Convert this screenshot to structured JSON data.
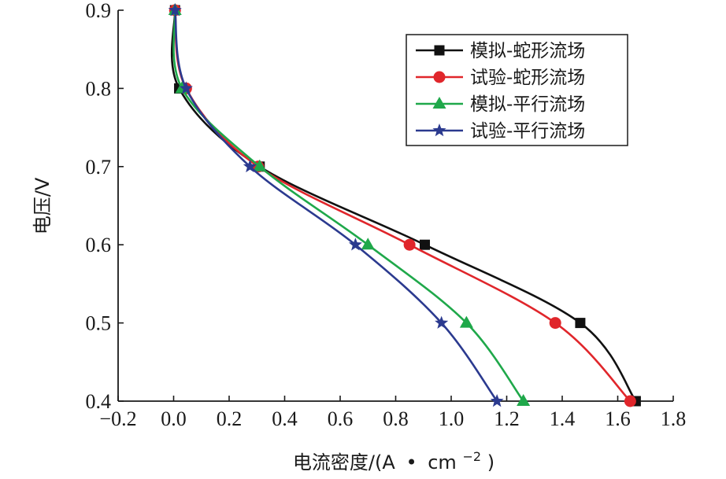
{
  "chart_data": {
    "type": "line",
    "title": "",
    "xlabel_main": "电流密度/(A",
    "xlabel_dot": "•",
    "xlabel_unit": "cm",
    "xlabel_sup": "−2",
    "xlabel_close": ")",
    "ylabel": "电压/V",
    "xlim": [
      -0.2,
      1.8
    ],
    "ylim": [
      0.4,
      0.9
    ],
    "x_ticks": [
      -0.2,
      0.0,
      0.2,
      0.4,
      0.6,
      0.8,
      1.0,
      1.2,
      1.4,
      1.6,
      1.8
    ],
    "x_tick_labels": [
      "−0.2",
      "0.0",
      "0.2",
      "0.4",
      "0.6",
      "0.8",
      "1.0",
      "1.2",
      "1.4",
      "1.6",
      "1.8"
    ],
    "y_ticks": [
      0.4,
      0.5,
      0.6,
      0.7,
      0.8,
      0.9
    ],
    "y_tick_labels": [
      "0.4",
      "0.5",
      "0.6",
      "0.7",
      "0.8",
      "0.9"
    ],
    "grid": false,
    "legend_position": "top-right",
    "series": [
      {
        "name": "模拟-蛇形流场",
        "color": "#111111",
        "marker": "square",
        "points": [
          [
            0.005,
            0.9
          ],
          [
            0.02,
            0.8
          ],
          [
            0.31,
            0.7
          ],
          [
            0.905,
            0.6
          ],
          [
            1.465,
            0.5
          ],
          [
            1.665,
            0.4
          ]
        ]
      },
      {
        "name": "试验-蛇形流场",
        "color": "#e0262b",
        "marker": "circle",
        "points": [
          [
            0.005,
            0.9
          ],
          [
            0.045,
            0.8
          ],
          [
            0.305,
            0.7
          ],
          [
            0.85,
            0.6
          ],
          [
            1.375,
            0.5
          ],
          [
            1.645,
            0.4
          ]
        ]
      },
      {
        "name": "模拟-平行流场",
        "color": "#1fa84a",
        "marker": "triangle",
        "points": [
          [
            0.005,
            0.9
          ],
          [
            0.03,
            0.8
          ],
          [
            0.31,
            0.7
          ],
          [
            0.7,
            0.6
          ],
          [
            1.055,
            0.5
          ],
          [
            1.26,
            0.4
          ]
        ]
      },
      {
        "name": "试验-平行流场",
        "color": "#2b3a8f",
        "marker": "star",
        "points": [
          [
            0.005,
            0.9
          ],
          [
            0.045,
            0.8
          ],
          [
            0.275,
            0.7
          ],
          [
            0.655,
            0.6
          ],
          [
            0.965,
            0.5
          ],
          [
            1.165,
            0.4
          ]
        ]
      }
    ]
  }
}
